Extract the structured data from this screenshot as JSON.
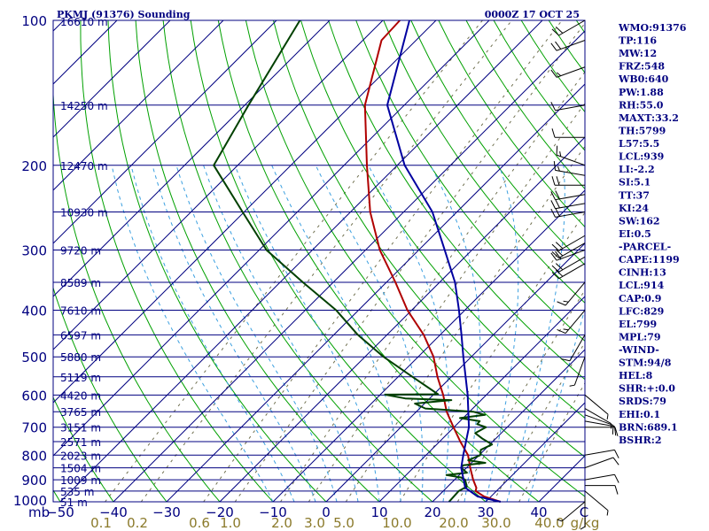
{
  "header": {
    "title": "PKMJ (91376) Sounding",
    "time": "0000Z 17 OCT 25"
  },
  "stats": [
    "WMO:91376",
    "TP:116",
    "MW:12",
    "FRZ:548",
    "WB0:640",
    "PW:1.88",
    "RH:55.0",
    "MAXT:33.2",
    "TH:5799",
    "L57:5.5",
    "LCL:939",
    "LI:-2.2",
    "SI:5.1",
    "TT:37",
    "KI:24",
    "SW:162",
    "EI:0.5",
    "-PARCEL-",
    "CAPE:1199",
    "CINH:13",
    "LCL:914",
    "CAP:0.9",
    "LFC:829",
    "EL:799",
    "MPL:79",
    "-WIND-",
    "STM:94/8",
    "HEL:8",
    "SHR:+:0.0",
    "SRDS:79",
    "EHI:0.1",
    "BRN:689.1",
    "BSHR:2"
  ],
  "colors": {
    "isobar": "#000080",
    "temperature": "#b00000",
    "dewpoint": "#004000",
    "parcel": "#0000a0",
    "dry_adiabat": "#00a000",
    "moist_adiabat": "#3ca0e0",
    "mixing_ratio": "#707050"
  },
  "chart_data": {
    "type": "skew-t",
    "pressure_axis": {
      "levels": [
        100,
        200,
        300,
        400,
        500,
        600,
        700,
        800,
        900,
        1000
      ],
      "unit_label": "mb"
    },
    "temperature_axis": {
      "ticks": [
        -50,
        -40,
        -30,
        -20,
        -10,
        0,
        10,
        20,
        30,
        40
      ],
      "last_label": "C"
    },
    "mixing_ratio_labels": [
      "0.1",
      "0.2",
      "0.6",
      "1.0",
      "2.0",
      "3.0",
      "5.0",
      "10.0",
      "20.0",
      "30.0",
      "40.0",
      "g/kg"
    ],
    "heights": [
      {
        "p": 100,
        "label": "16610 m"
      },
      {
        "p": 150,
        "label": "14250 m"
      },
      {
        "p": 200,
        "label": "12470 m"
      },
      {
        "p": 250,
        "label": "10930 m"
      },
      {
        "p": 300,
        "label": "9720 m"
      },
      {
        "p": 350,
        "label": "8589 m"
      },
      {
        "p": 400,
        "label": "7610 m"
      },
      {
        "p": 450,
        "label": "6597 m"
      },
      {
        "p": 500,
        "label": "5880 m"
      },
      {
        "p": 550,
        "label": "5119 m"
      },
      {
        "p": 600,
        "label": "4420 m"
      },
      {
        "p": 650,
        "label": "3765 m"
      },
      {
        "p": 700,
        "label": "3151 m"
      },
      {
        "p": 750,
        "label": "2571 m"
      },
      {
        "p": 800,
        "label": "2023 m"
      },
      {
        "p": 850,
        "label": "1504 m"
      },
      {
        "p": 900,
        "label": "1009 m"
      },
      {
        "p": 950,
        "label": "535 m"
      },
      {
        "p": 1000,
        "label": "51 m"
      }
    ],
    "series": [
      {
        "points": [
          [
            100,
            -76.8
          ],
          [
            110,
            -76.5
          ],
          [
            150,
            -67.4
          ],
          [
            200,
            -55.7
          ],
          [
            250,
            -46.3
          ],
          [
            300,
            -37.3
          ],
          [
            350,
            -28.3
          ],
          [
            400,
            -20.8
          ],
          [
            450,
            -13.1
          ],
          [
            500,
            -7.1
          ],
          [
            550,
            -2.6
          ],
          [
            600,
            1.9
          ],
          [
            650,
            5.7
          ],
          [
            700,
            9.9
          ],
          [
            750,
            13.9
          ],
          [
            800,
            17.9
          ],
          [
            850,
            20.7
          ],
          [
            900,
            23.5
          ],
          [
            935,
            25.6
          ],
          [
            950,
            26.1
          ],
          [
            975,
            28.7
          ],
          [
            1000,
            32.8
          ]
        ]
      },
      {
        "points": [
          [
            100,
            -95.6
          ],
          [
            150,
            -89.3
          ],
          [
            200,
            -84.5
          ],
          [
            250,
            -70.3
          ],
          [
            300,
            -58.6
          ],
          [
            350,
            -45.7
          ],
          [
            400,
            -34.2
          ],
          [
            450,
            -25.5
          ],
          [
            500,
            -16.5
          ],
          [
            550,
            -7.3
          ],
          [
            598,
            0.8
          ],
          [
            599,
            -9.1
          ],
          [
            610,
            -4.6
          ],
          [
            615,
            4.4
          ],
          [
            625,
            -1.8
          ],
          [
            640,
            1.1
          ],
          [
            650,
            10.7
          ],
          [
            660,
            13.5
          ],
          [
            670,
            9.4
          ],
          [
            680,
            13.7
          ],
          [
            690,
            13.8
          ],
          [
            700,
            16.0
          ],
          [
            720,
            15.1
          ],
          [
            740,
            17.6
          ],
          [
            760,
            20.4
          ],
          [
            780,
            19.3
          ],
          [
            800,
            20.2
          ],
          [
            820,
            18.9
          ],
          [
            830,
            22.6
          ],
          [
            840,
            18.9
          ],
          [
            850,
            19.0
          ],
          [
            870,
            21.0
          ],
          [
            880,
            17.6
          ],
          [
            890,
            20.8
          ],
          [
            900,
            22.0
          ],
          [
            930,
            23.6
          ],
          [
            950,
            22.9
          ],
          [
            1000,
            23.1
          ]
        ]
      },
      {
        "points": [
          [
            100,
            -75.0
          ],
          [
            150,
            -63.2
          ],
          [
            200,
            -48.6
          ],
          [
            250,
            -34.6
          ],
          [
            300,
            -25.1
          ],
          [
            350,
            -17.1
          ],
          [
            400,
            -11.1
          ],
          [
            450,
            -6.0
          ],
          [
            500,
            -1.5
          ],
          [
            600,
            6.5
          ],
          [
            700,
            12.8
          ],
          [
            800,
            17.0
          ],
          [
            850,
            19.0
          ],
          [
            900,
            21.7
          ],
          [
            935,
            23.5
          ],
          [
            975,
            27.5
          ],
          [
            1000,
            32.8
          ]
        ]
      }
    ],
    "winds": [
      [
        100,
        240,
        20
      ],
      [
        110,
        250,
        20
      ],
      [
        125,
        250,
        15
      ],
      [
        150,
        260,
        10
      ],
      [
        175,
        270,
        10
      ],
      [
        200,
        290,
        15
      ],
      [
        210,
        280,
        15
      ],
      [
        220,
        270,
        20
      ],
      [
        230,
        260,
        20
      ],
      [
        240,
        260,
        20
      ],
      [
        250,
        260,
        20
      ],
      [
        280,
        240,
        20
      ],
      [
        290,
        240,
        20
      ],
      [
        300,
        250,
        20
      ],
      [
        310,
        240,
        20
      ],
      [
        320,
        240,
        20
      ],
      [
        350,
        220,
        15
      ],
      [
        400,
        220,
        15
      ],
      [
        450,
        210,
        10
      ],
      [
        500,
        200,
        5
      ],
      [
        600,
        130,
        5
      ],
      [
        640,
        120,
        5
      ],
      [
        660,
        110,
        10
      ],
      [
        680,
        100,
        10
      ],
      [
        700,
        90,
        10
      ],
      [
        800,
        80,
        10
      ],
      [
        850,
        70,
        10
      ],
      [
        900,
        80,
        10
      ],
      [
        925,
        90,
        10
      ],
      [
        950,
        130,
        5
      ],
      [
        975,
        180,
        5
      ],
      [
        1000,
        230,
        5
      ]
    ]
  }
}
